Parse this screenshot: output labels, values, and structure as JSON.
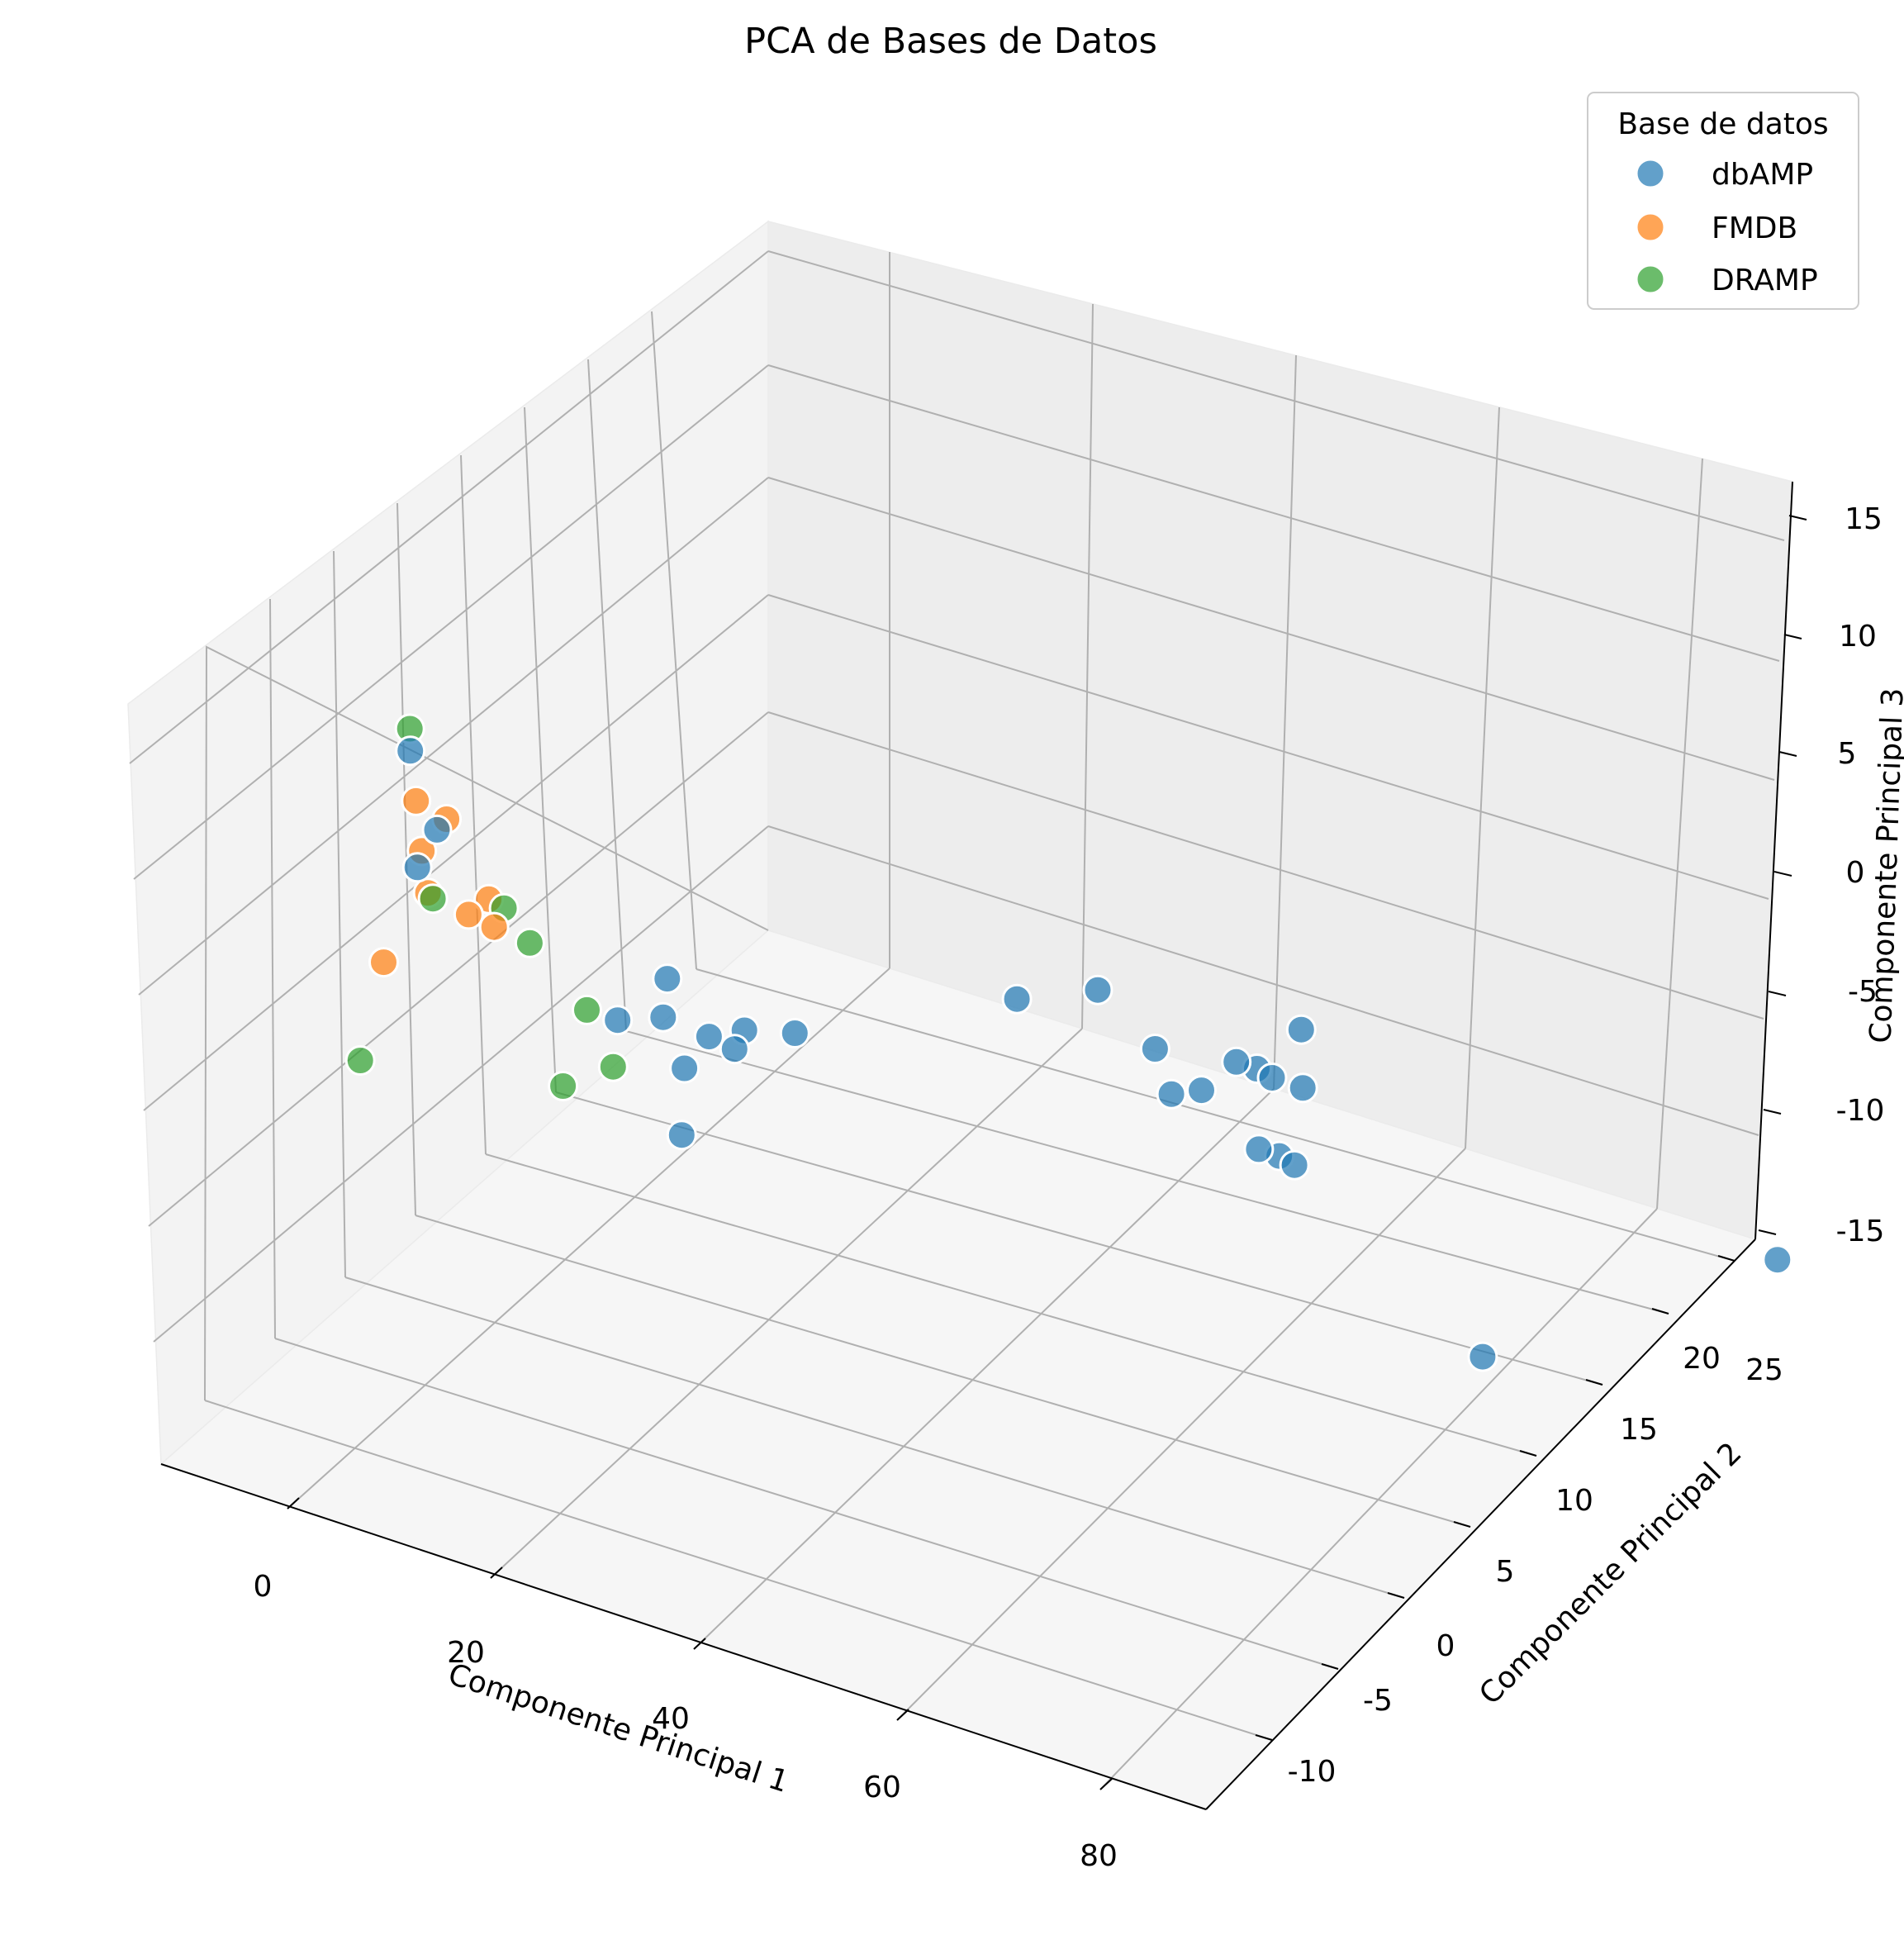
{
  "chart_data": {
    "type": "scatter",
    "title": "PCA de Bases de Datos",
    "xlabel": "Componente Principal 1",
    "ylabel": "Componente Principal 2",
    "zlabel": "Componente Principal 3",
    "x_ticks": [
      0,
      20,
      40,
      60,
      80
    ],
    "y_ticks": [
      -10,
      -5,
      0,
      5,
      10,
      15,
      20,
      25
    ],
    "z_ticks": [
      -15,
      -10,
      -5,
      0,
      5,
      10,
      15
    ],
    "xlim": [
      -12,
      90
    ],
    "ylim": [
      -13,
      28
    ],
    "zlim": [
      -16,
      16
    ],
    "grid": true,
    "legend": {
      "title": "Base de datos",
      "position": "top-right",
      "entries": [
        {
          "name": "dbAMP",
          "color": "#1f77b4"
        },
        {
          "name": "FMDB",
          "color": "#ff7f0e"
        },
        {
          "name": "DRAMP",
          "color": "#2ca02c"
        }
      ]
    },
    "series": [
      {
        "name": "dbAMP",
        "color": "#1f77b4",
        "points": [
          [
            22,
            -1,
            -3
          ],
          [
            33,
            14,
            -4
          ],
          [
            38,
            16,
            -4
          ],
          [
            45,
            15,
            -5
          ],
          [
            48,
            14,
            -6
          ],
          [
            48,
            16,
            -7
          ],
          [
            50,
            17,
            -6
          ],
          [
            52,
            17,
            -6
          ],
          [
            55,
            18,
            -7
          ],
          [
            52,
            20,
            -6
          ],
          [
            52,
            18,
            -7
          ],
          [
            55,
            15,
            -8
          ],
          [
            57,
            15,
            -8
          ],
          [
            57,
            16,
            -9
          ],
          [
            84,
            10,
            -10
          ],
          [
            88,
            27,
            -15
          ],
          [
            15,
            4,
            -4
          ],
          [
            16,
            5,
            -3
          ],
          [
            17,
            6,
            -4
          ],
          [
            18,
            6,
            -3
          ],
          [
            20,
            8,
            -4
          ],
          [
            10,
            3,
            -2
          ],
          [
            12,
            5,
            -1
          ],
          [
            13,
            4,
            -2
          ],
          [
            0,
            -2,
            8
          ],
          [
            -1,
            -3,
            12
          ],
          [
            -2,
            -2,
            6
          ]
        ]
      },
      {
        "name": "FMDB",
        "color": "#ff7f0e",
        "points": [
          [
            -2,
            -2,
            9
          ],
          [
            -1,
            -2,
            5
          ],
          [
            -3,
            -1,
            6
          ],
          [
            -2,
            0,
            7
          ],
          [
            0,
            0,
            3
          ],
          [
            1,
            1,
            2
          ],
          [
            -4,
            -3,
            2
          ],
          [
            2,
            0,
            4
          ]
        ]
      },
      {
        "name": "DRAMP",
        "color": "#2ca02c",
        "points": [
          [
            -1,
            -3,
            13
          ],
          [
            2,
            1,
            3
          ],
          [
            3,
            2,
            1
          ],
          [
            -5,
            -4,
            -2
          ],
          [
            6,
            2,
            -5
          ],
          [
            8,
            4,
            -5
          ],
          [
            -2,
            -1,
            4
          ],
          [
            7,
            3,
            -2
          ]
        ]
      }
    ]
  }
}
